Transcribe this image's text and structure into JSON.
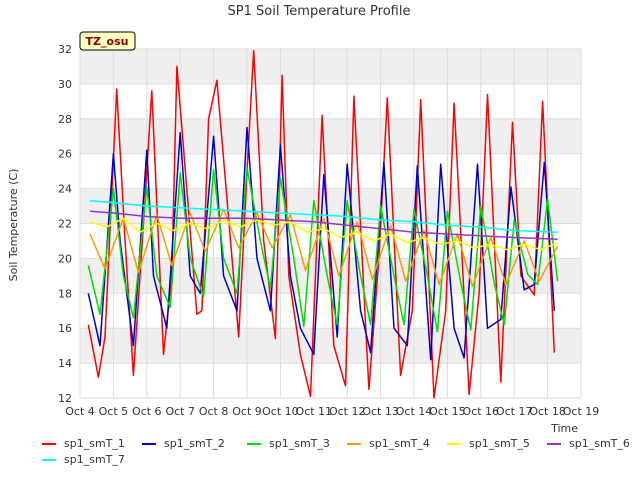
{
  "chart_data": {
    "type": "line",
    "title": "SP1 Soil Temperature Profile",
    "xlabel": "Time",
    "ylabel": "Soil Temperature (C)",
    "xlim": [
      4,
      19
    ],
    "ylim": [
      12,
      32
    ],
    "xticks": [
      {
        "value": 4,
        "label": "Oct 4"
      },
      {
        "value": 5,
        "label": "Oct 5"
      },
      {
        "value": 6,
        "label": "Oct 6"
      },
      {
        "value": 7,
        "label": "Oct 7"
      },
      {
        "value": 8,
        "label": "Oct 8"
      },
      {
        "value": 9,
        "label": "Oct 9"
      },
      {
        "value": 10,
        "label": "Oct 10"
      },
      {
        "value": 11,
        "label": "Oct 11"
      },
      {
        "value": 12,
        "label": "Oct 12"
      },
      {
        "value": 13,
        "label": "Oct 13"
      },
      {
        "value": 14,
        "label": "Oct 14"
      },
      {
        "value": 15,
        "label": "Oct 15"
      },
      {
        "value": 16,
        "label": "Oct 16"
      },
      {
        "value": 17,
        "label": "Oct 17"
      },
      {
        "value": 18,
        "label": "Oct 18"
      },
      {
        "value": 19,
        "label": "Oct 19"
      }
    ],
    "yticks": [
      12,
      14,
      16,
      18,
      20,
      22,
      24,
      26,
      28,
      30,
      32
    ],
    "annotation": "TZ_osu",
    "legend_position": "bottom",
    "series": [
      {
        "name": "sp1_smT_1",
        "color": "#ff0000",
        "x": [
          4.25,
          4.55,
          4.75,
          5.1,
          5.35,
          5.6,
          5.9,
          6.15,
          6.5,
          6.75,
          6.9,
          7.5,
          7.65,
          7.85,
          8.1,
          8.75,
          9.0,
          9.2,
          9.5,
          9.85,
          10.05,
          10.25,
          10.6,
          10.9,
          11.25,
          11.6,
          11.95,
          12.2,
          12.65,
          12.95,
          13.2,
          13.6,
          13.95,
          14.2,
          14.6,
          14.95,
          15.2,
          15.65,
          15.95,
          16.2,
          16.6,
          16.95,
          17.2,
          17.6,
          17.85,
          18.2
        ],
        "y": [
          16.2,
          13.2,
          15.5,
          29.7,
          21,
          13.3,
          22,
          29.6,
          14.5,
          19,
          31,
          16.8,
          17,
          28,
          30.2,
          15.5,
          25,
          31.9,
          21,
          15.4,
          30.5,
          19,
          14.5,
          12.1,
          28.2,
          15,
          12.7,
          29.3,
          12.5,
          20,
          29.2,
          13.3,
          17,
          29.1,
          12,
          17,
          28.9,
          12.2,
          18,
          29.4,
          12.9,
          27.8,
          19,
          17.9,
          29,
          14.6
        ]
      },
      {
        "name": "sp1_smT_2",
        "color": "#0000cc",
        "x": [
          4.25,
          4.6,
          5.0,
          5.2,
          5.6,
          6.0,
          6.2,
          6.6,
          7.0,
          7.3,
          7.6,
          8.0,
          8.3,
          8.7,
          9.0,
          9.3,
          9.7,
          10.0,
          10.3,
          10.6,
          11.0,
          11.3,
          11.7,
          12.0,
          12.4,
          12.7,
          13.1,
          13.4,
          13.8,
          14.1,
          14.5,
          14.8,
          15.2,
          15.5,
          15.9,
          16.2,
          16.6,
          16.9,
          17.3,
          17.6,
          17.9,
          18.2
        ],
        "y": [
          18,
          15,
          26,
          21,
          15,
          26.2,
          19,
          16,
          27.2,
          19,
          18,
          27,
          19,
          17,
          27.5,
          20,
          17,
          26.5,
          19,
          16,
          14.5,
          24.8,
          15.5,
          25.4,
          17,
          14.6,
          25.5,
          16,
          15,
          25.3,
          14.2,
          25.4,
          16,
          14.3,
          25.4,
          16,
          16.5,
          24.1,
          18.2,
          18.5,
          25.5,
          17
        ]
      },
      {
        "name": "sp1_smT_3",
        "color": "#00dd00",
        "x": [
          4.25,
          4.6,
          5.0,
          5.3,
          5.6,
          6.0,
          6.3,
          6.7,
          7.0,
          7.3,
          7.7,
          8.0,
          8.3,
          8.7,
          9.0,
          9.4,
          9.7,
          10.0,
          10.4,
          10.7,
          11.0,
          11.4,
          11.7,
          12.0,
          12.4,
          12.7,
          13.0,
          13.4,
          13.7,
          14.0,
          14.4,
          14.7,
          15.0,
          15.4,
          15.7,
          16.0,
          16.4,
          16.7,
          17.0,
          17.4,
          17.7,
          18.0,
          18.3
        ],
        "y": [
          19.6,
          16.8,
          24,
          19,
          16.6,
          24.1,
          19,
          17.2,
          24.9,
          20,
          17.8,
          25.1,
          20,
          18,
          25.2,
          21,
          18.3,
          24.6,
          20,
          16.1,
          23.3,
          19,
          16.2,
          23.3,
          19,
          16.2,
          23,
          19,
          16.2,
          22.8,
          19,
          15.8,
          22.7,
          18.6,
          15.9,
          23,
          18.6,
          16.2,
          22.2,
          19.1,
          18.5,
          23.4,
          18.7
        ]
      },
      {
        "name": "sp1_smT_4",
        "color": "#ff9900",
        "x": [
          4.3,
          4.75,
          5.3,
          5.75,
          6.3,
          6.75,
          7.3,
          7.75,
          8.3,
          8.75,
          9.3,
          9.75,
          10.3,
          10.75,
          11.3,
          11.75,
          12.3,
          12.75,
          13.3,
          13.75,
          14.3,
          14.75,
          15.3,
          15.75,
          16.3,
          16.75,
          17.3,
          17.75,
          18.3
        ],
        "y": [
          21.4,
          19.4,
          22.3,
          19.2,
          22.5,
          19.6,
          22.6,
          20.4,
          22.8,
          20.6,
          22.6,
          20.6,
          22.5,
          19.3,
          22.3,
          19,
          22.1,
          18.8,
          21.9,
          18.7,
          21.6,
          18.5,
          21.4,
          18.4,
          21.2,
          18.5,
          21,
          18.7,
          20.7
        ]
      },
      {
        "name": "sp1_smT_5",
        "color": "#ffff00",
        "x": [
          4.3,
          4.8,
          5.3,
          5.8,
          6.3,
          6.8,
          7.3,
          7.8,
          8.3,
          8.8,
          9.3,
          9.8,
          10.3,
          10.8,
          11.3,
          11.8,
          12.3,
          12.8,
          13.3,
          13.8,
          14.3,
          14.8,
          15.3,
          15.8,
          16.3,
          16.8,
          17.3,
          17.8,
          18.3
        ],
        "y": [
          22.1,
          21.8,
          22.3,
          21.5,
          22.0,
          21.6,
          22.0,
          21.7,
          22.2,
          21.8,
          22.2,
          21.9,
          22.1,
          21.5,
          21.7,
          21.2,
          21.5,
          21.0,
          21.4,
          20.9,
          21.2,
          20.8,
          21.0,
          20.6,
          20.8,
          20.5,
          20.8,
          20.5,
          20.9
        ]
      },
      {
        "name": "sp1_smT_6",
        "color": "#9933cc",
        "x": [
          4.3,
          5.0,
          6.0,
          7.0,
          8.0,
          9.0,
          10.0,
          11.0,
          12.0,
          13.0,
          14.0,
          15.0,
          16.0,
          17.0,
          18.3
        ],
        "y": [
          22.7,
          22.6,
          22.4,
          22.3,
          22.3,
          22.3,
          22.2,
          22.1,
          21.9,
          21.7,
          21.5,
          21.4,
          21.3,
          21.2,
          21.1
        ]
      },
      {
        "name": "sp1_smT_7",
        "color": "#00ffff",
        "x": [
          4.3,
          5.0,
          6.0,
          7.0,
          8.0,
          9.0,
          10.0,
          11.0,
          12.0,
          13.0,
          14.0,
          15.0,
          16.0,
          17.0,
          18.3
        ],
        "y": [
          23.3,
          23.2,
          23.0,
          22.9,
          22.8,
          22.7,
          22.6,
          22.5,
          22.4,
          22.2,
          22.1,
          21.9,
          21.8,
          21.6,
          21.5
        ]
      }
    ]
  }
}
